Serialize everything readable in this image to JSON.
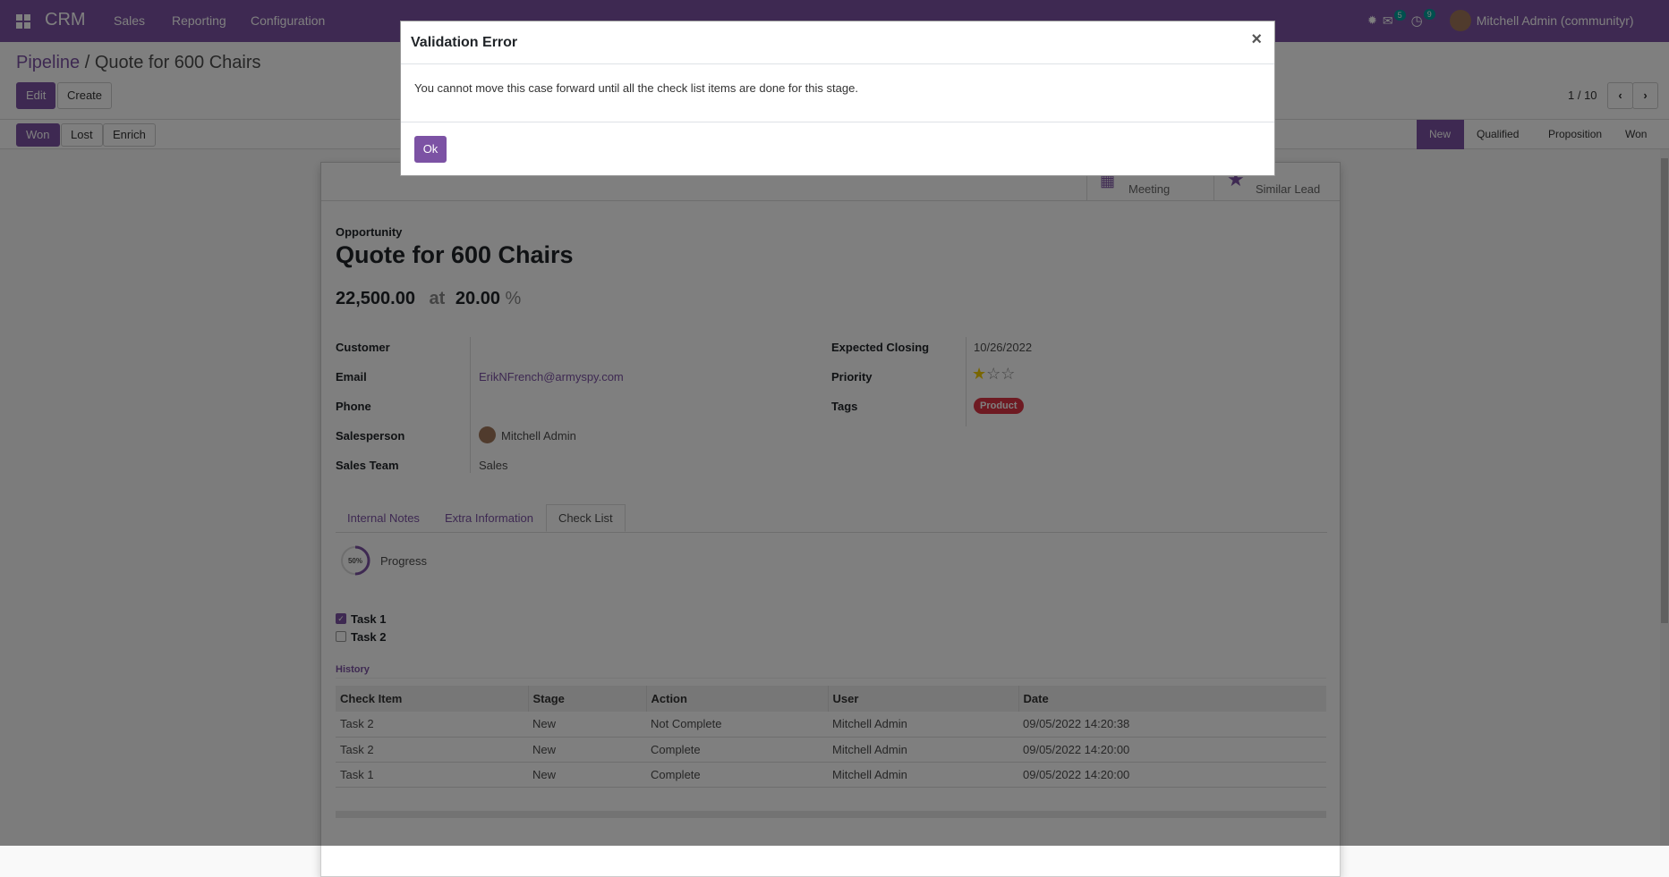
{
  "navbar": {
    "app": "CRM",
    "menus": [
      "Sales",
      "Reporting",
      "Configuration"
    ],
    "messages_count": "5",
    "activities_count": "9",
    "user": "Mitchell Admin (communityr)",
    "color": "#7c52a4"
  },
  "breadcrumb": {
    "parent": "Pipeline",
    "separator": "/",
    "current": "Quote for 600 Chairs"
  },
  "control": {
    "edit": "Edit",
    "create": "Create",
    "pager": "1 / 10",
    "won": "Won",
    "lost": "Lost",
    "enrich": "Enrich"
  },
  "stages": {
    "items": [
      "New",
      "Qualified",
      "Proposition",
      "Won"
    ],
    "active": "New"
  },
  "stat_buttons": {
    "meeting": "Meeting",
    "similar": "Similar Lead"
  },
  "form": {
    "type_label": "Opportunity",
    "title": "Quote for 600 Chairs",
    "revenue": "22,500.00",
    "at": "at",
    "probability": "20.00",
    "percent": "%",
    "left": [
      {
        "label": "Customer",
        "value": ""
      },
      {
        "label": "Email",
        "value": "ErikNFrench@armyspy.com"
      },
      {
        "label": "Phone",
        "value": ""
      },
      {
        "label": "Salesperson",
        "value": "Mitchell Admin"
      },
      {
        "label": "Sales Team",
        "value": "Sales"
      }
    ],
    "right": {
      "closing_label": "Expected Closing",
      "closing": "10/26/2022",
      "priority_label": "Priority",
      "priority_stars": 1,
      "priority_max": 3,
      "tags_label": "Tags",
      "tag": "Product",
      "tag_color": "#dc3545"
    }
  },
  "tabs": [
    "Internal Notes",
    "Extra Information",
    "Check List"
  ],
  "checklist": {
    "progress_text": "50%",
    "progress": 50,
    "progress_label": "Progress",
    "tasks": [
      {
        "name": "Task 1",
        "done": true
      },
      {
        "name": "Task 2",
        "done": false
      }
    ],
    "history_title": "History",
    "columns": [
      "Check Item",
      "Stage",
      "Action",
      "User",
      "Date"
    ],
    "rows": [
      [
        "Task 2",
        "New",
        "Not Complete",
        "Mitchell Admin",
        "09/05/2022 14:20:38"
      ],
      [
        "Task 2",
        "New",
        "Complete",
        "Mitchell Admin",
        "09/05/2022 14:20:00"
      ],
      [
        "Task 1",
        "New",
        "Complete",
        "Mitchell Admin",
        "09/05/2022 14:20:00"
      ]
    ]
  },
  "modal": {
    "title": "Validation Error",
    "close": "×",
    "message": "You cannot move this case forward until all the check list items are done for this stage.",
    "ok": "Ok"
  }
}
